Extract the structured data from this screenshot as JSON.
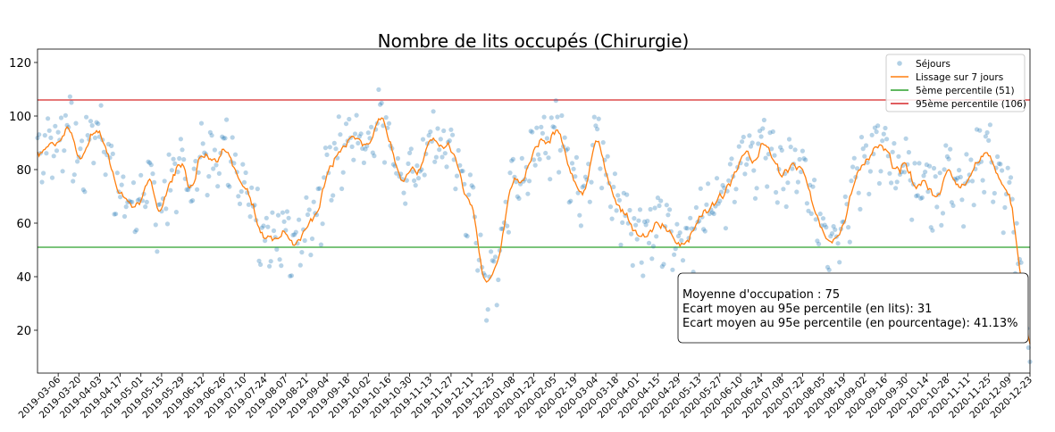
{
  "chart_data": {
    "type": "scatter",
    "title": "Nombre de lits occupés (Chirurgie)",
    "xlabel": "",
    "ylabel": "",
    "x_range": [
      "2019-02-20",
      "2020-12-23"
    ],
    "ylim": [
      4,
      125
    ],
    "yticks": [
      20,
      40,
      60,
      80,
      100,
      120
    ],
    "xticks": [
      "2019-03-06",
      "2019-03-20",
      "2019-04-03",
      "2019-04-17",
      "2019-05-01",
      "2019-05-15",
      "2019-05-29",
      "2019-06-12",
      "2019-06-26",
      "2019-07-10",
      "2019-07-24",
      "2019-08-07",
      "2019-08-21",
      "2019-09-04",
      "2019-09-18",
      "2019-10-02",
      "2019-10-16",
      "2019-10-30",
      "2019-11-13",
      "2019-11-27",
      "2019-12-11",
      "2019-12-25",
      "2020-01-08",
      "2020-01-22",
      "2020-02-05",
      "2020-02-19",
      "2020-03-04",
      "2020-03-18",
      "2020-04-01",
      "2020-04-15",
      "2020-04-29",
      "2020-05-13",
      "2020-05-27",
      "2020-06-10",
      "2020-06-24",
      "2020-07-08",
      "2020-07-22",
      "2020-08-05",
      "2020-08-19",
      "2020-09-02",
      "2020-09-16",
      "2020-09-30",
      "2020-10-14",
      "2020-10-28",
      "2020-11-11",
      "2020-11-25",
      "2020-12-09",
      "2020-12-23"
    ],
    "grid": false,
    "legend_position": "top-right",
    "series": [
      {
        "name": "Séjours",
        "kind": "scatter",
        "color": "#1f77b4",
        "anchors": [
          [
            "2019-02-20",
            88
          ],
          [
            "2019-03-06",
            90
          ],
          [
            "2019-03-13",
            99
          ],
          [
            "2019-03-17",
            88
          ],
          [
            "2019-03-20",
            82
          ],
          [
            "2019-03-24",
            86
          ],
          [
            "2019-03-30",
            97
          ],
          [
            "2019-04-03",
            95
          ],
          [
            "2019-04-10",
            82
          ],
          [
            "2019-04-17",
            73
          ],
          [
            "2019-04-24",
            64
          ],
          [
            "2019-05-01",
            70
          ],
          [
            "2019-05-08",
            72
          ],
          [
            "2019-05-12",
            66
          ],
          [
            "2019-05-15",
            65
          ],
          [
            "2019-05-22",
            78
          ],
          [
            "2019-05-29",
            82
          ],
          [
            "2019-06-05",
            70
          ],
          [
            "2019-06-12",
            91
          ],
          [
            "2019-06-19",
            82
          ],
          [
            "2019-06-26",
            92
          ],
          [
            "2019-07-03",
            85
          ],
          [
            "2019-07-10",
            72
          ],
          [
            "2019-07-17",
            65
          ],
          [
            "2019-07-24",
            57
          ],
          [
            "2019-07-31",
            52
          ],
          [
            "2019-08-07",
            54
          ],
          [
            "2019-08-14",
            46
          ],
          [
            "2019-08-21",
            58
          ],
          [
            "2019-08-28",
            60
          ],
          [
            "2019-09-04",
            79
          ],
          [
            "2019-09-11",
            88
          ],
          [
            "2019-09-18",
            91
          ],
          [
            "2019-09-25",
            91
          ],
          [
            "2019-10-02",
            90
          ],
          [
            "2019-10-09",
            102
          ],
          [
            "2019-10-16",
            95
          ],
          [
            "2019-10-23",
            77
          ],
          [
            "2019-10-30",
            76
          ],
          [
            "2019-11-06",
            80
          ],
          [
            "2019-11-13",
            93
          ],
          [
            "2019-11-20",
            86
          ],
          [
            "2019-11-27",
            90
          ],
          [
            "2019-12-04",
            75
          ],
          [
            "2019-12-11",
            66
          ],
          [
            "2019-12-18",
            42
          ],
          [
            "2019-12-25",
            37
          ],
          [
            "2020-01-01",
            57
          ],
          [
            "2020-01-08",
            80
          ],
          [
            "2020-01-15",
            78
          ],
          [
            "2020-01-22",
            85
          ],
          [
            "2020-01-29",
            89
          ],
          [
            "2020-02-05",
            95
          ],
          [
            "2020-02-12",
            92
          ],
          [
            "2020-02-19",
            73
          ],
          [
            "2020-02-26",
            76
          ],
          [
            "2020-03-04",
            93
          ],
          [
            "2020-03-11",
            78
          ],
          [
            "2020-03-18",
            67
          ],
          [
            "2020-03-25",
            63
          ],
          [
            "2020-04-01",
            58
          ],
          [
            "2020-04-08",
            56
          ],
          [
            "2020-04-15",
            58
          ],
          [
            "2020-04-22",
            56
          ],
          [
            "2020-04-29",
            50
          ],
          [
            "2020-05-06",
            57
          ],
          [
            "2020-05-13",
            61
          ],
          [
            "2020-05-20",
            66
          ],
          [
            "2020-05-27",
            72
          ],
          [
            "2020-06-03",
            77
          ],
          [
            "2020-06-10",
            86
          ],
          [
            "2020-06-17",
            82
          ],
          [
            "2020-06-24",
            87
          ],
          [
            "2020-07-01",
            87
          ],
          [
            "2020-07-08",
            76
          ],
          [
            "2020-07-15",
            81
          ],
          [
            "2020-07-22",
            78
          ],
          [
            "2020-07-29",
            65
          ],
          [
            "2020-08-05",
            60
          ],
          [
            "2020-08-12",
            55
          ],
          [
            "2020-08-19",
            63
          ],
          [
            "2020-08-26",
            73
          ],
          [
            "2020-09-02",
            85
          ],
          [
            "2020-09-09",
            87
          ],
          [
            "2020-09-16",
            85
          ],
          [
            "2020-09-23",
            77
          ],
          [
            "2020-09-30",
            83
          ],
          [
            "2020-10-07",
            72
          ],
          [
            "2020-10-14",
            75
          ],
          [
            "2020-10-21",
            70
          ],
          [
            "2020-10-28",
            80
          ],
          [
            "2020-11-04",
            78
          ],
          [
            "2020-11-11",
            74
          ],
          [
            "2020-11-18",
            85
          ],
          [
            "2020-11-25",
            88
          ],
          [
            "2020-12-02",
            74
          ],
          [
            "2020-12-09",
            69
          ],
          [
            "2020-12-16",
            45
          ],
          [
            "2020-12-23",
            10
          ]
        ]
      },
      {
        "name": "Lissage sur 7 jours",
        "kind": "line",
        "color": "#ff7f0e"
      },
      {
        "name": "5ème percentile (51)",
        "kind": "hline",
        "y": 51,
        "color": "#2ca02c"
      },
      {
        "name": "95ème percentile (106)",
        "kind": "hline",
        "y": 106,
        "color": "#d62728"
      }
    ],
    "annotation": {
      "lines": [
        "Moyenne d'occupation : 75",
        "Ecart moyen au 95e percentile (en lits): 31",
        "Ecart moyen au 95e percentile (en pourcentage): 41.13%"
      ]
    }
  }
}
